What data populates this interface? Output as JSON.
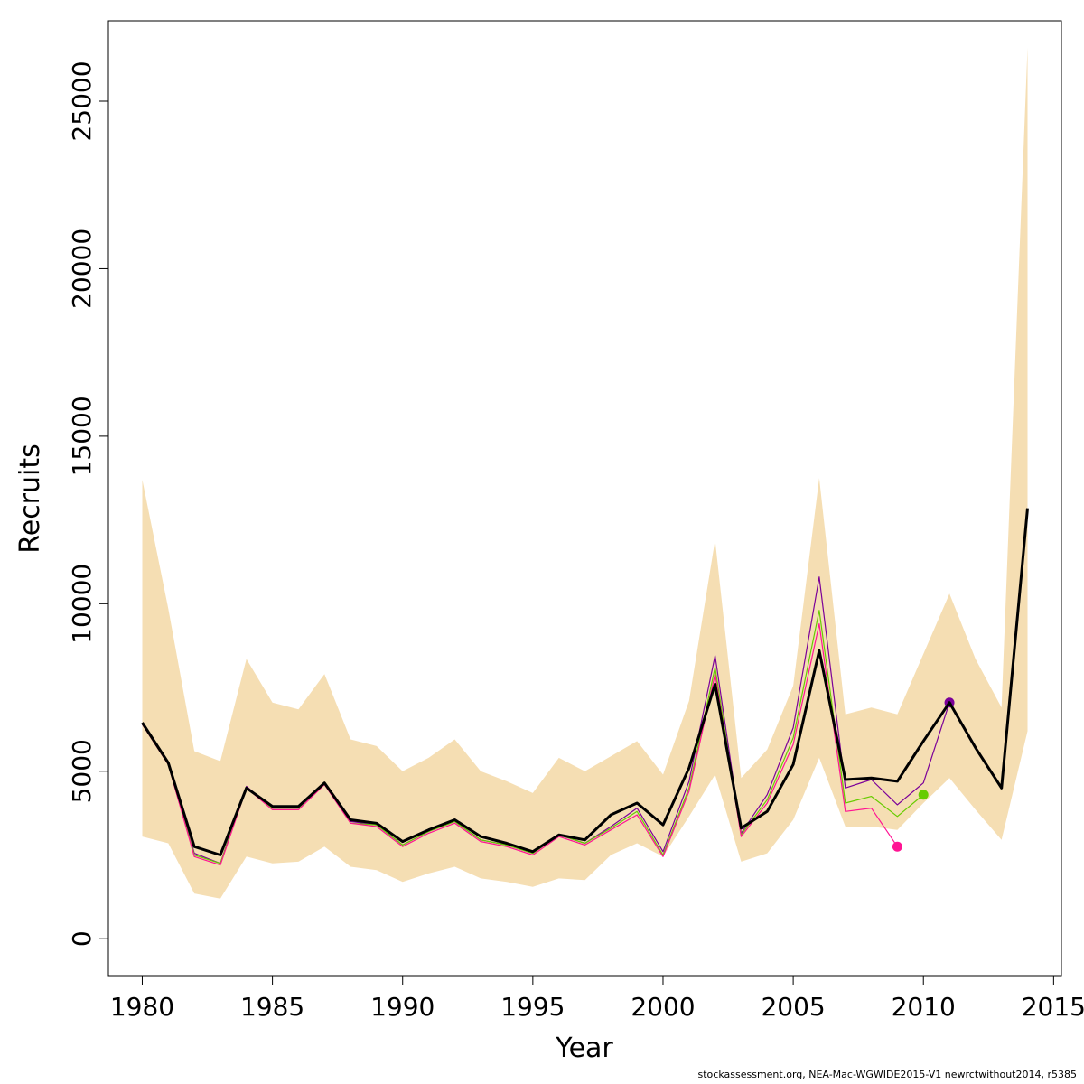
{
  "chart_data": {
    "type": "line",
    "xlabel": "Year",
    "ylabel": "Recruits",
    "xlim": [
      1978.7,
      2015.3
    ],
    "ylim": [
      -1100,
      27400
    ],
    "x_ticks": [
      1980,
      1985,
      1990,
      1995,
      2000,
      2005,
      2010,
      2015
    ],
    "y_ticks": [
      0,
      5000,
      10000,
      15000,
      20000,
      25000
    ],
    "grid": false,
    "band_color": "#F5DEB3",
    "confidence_band": {
      "x": [
        1980,
        1981,
        1982,
        1983,
        1984,
        1985,
        1986,
        1987,
        1988,
        1989,
        1990,
        1991,
        1992,
        1993,
        1994,
        1995,
        1996,
        1997,
        1998,
        1999,
        2000,
        2001,
        2002,
        2003,
        2004,
        2005,
        2006,
        2007,
        2008,
        2009,
        2010,
        2011,
        2012,
        2013,
        2014
      ],
      "lower": [
        3050,
        2850,
        1350,
        1200,
        2450,
        2250,
        2300,
        2750,
        2150,
        2050,
        1700,
        1950,
        2150,
        1800,
        1700,
        1550,
        1800,
        1750,
        2500,
        2850,
        2450,
        3650,
        4900,
        2300,
        2550,
        3550,
        5400,
        3350,
        3350,
        3250,
        4050,
        4800,
        3850,
        2950,
        6200
      ],
      "upper": [
        13700,
        9850,
        5600,
        5300,
        8350,
        7050,
        6850,
        7900,
        5950,
        5750,
        5000,
        5400,
        5950,
        5000,
        4700,
        4350,
        5400,
        5000,
        5450,
        5900,
        4900,
        7100,
        11900,
        4800,
        5650,
        7550,
        13750,
        6700,
        6900,
        6700,
        8500,
        10300,
        8350,
        6900,
        26600
      ]
    },
    "series": [
      {
        "color": "#000000",
        "x": [
          1980,
          1981,
          1982,
          1983,
          1984,
          1985,
          1986,
          1987,
          1988,
          1989,
          1990,
          1991,
          1992,
          1993,
          1994,
          1995,
          1996,
          1997,
          1998,
          1999,
          2000,
          2001,
          2002,
          2003,
          2004,
          2005,
          2006,
          2007,
          2008,
          2009,
          2010,
          2011,
          2012,
          2013,
          2014
        ],
        "values": [
          6450,
          5250,
          2750,
          2500,
          4500,
          3950,
          3950,
          4650,
          3550,
          3450,
          2900,
          3250,
          3550,
          3050,
          2850,
          2600,
          3100,
          2950,
          3700,
          4050,
          3400,
          5100,
          7600,
          3300,
          3800,
          5200,
          8600,
          4750,
          4800,
          4700,
          5900,
          7050,
          5700,
          4500,
          12850
        ]
      },
      {
        "color": "#7B0099",
        "x": [
          1980,
          1981,
          1982,
          1983,
          1984,
          1985,
          1986,
          1987,
          1988,
          1989,
          1990,
          1991,
          1992,
          1993,
          1994,
          1995,
          1996,
          1997,
          1998,
          1999,
          2000,
          2001,
          2002,
          2003,
          2004,
          2005,
          2006,
          2007,
          2008,
          2009,
          2010,
          2011
        ],
        "values": [
          6400,
          5200,
          2550,
          2250,
          4550,
          3900,
          3900,
          4650,
          3500,
          3400,
          2800,
          3200,
          3500,
          2950,
          2800,
          2550,
          3100,
          2850,
          3350,
          3900,
          2600,
          4700,
          8450,
          3150,
          4300,
          6300,
          10800,
          4500,
          4750,
          4000,
          4650,
          7050
        ],
        "endpoint": {
          "x": 2011,
          "value": 7050
        }
      },
      {
        "color": "#66CC00",
        "x": [
          1980,
          1981,
          1982,
          1983,
          1984,
          1985,
          1986,
          1987,
          1988,
          1989,
          1990,
          1991,
          1992,
          1993,
          1994,
          1995,
          1996,
          1997,
          1998,
          1999,
          2000,
          2001,
          2002,
          2003,
          2004,
          2005,
          2006,
          2007,
          2008,
          2009,
          2010
        ],
        "values": [
          6400,
          5200,
          2500,
          2250,
          4500,
          3900,
          3900,
          4650,
          3450,
          3400,
          2800,
          3200,
          3500,
          2950,
          2800,
          2550,
          3100,
          2850,
          3300,
          3800,
          2500,
          4500,
          8100,
          3100,
          4150,
          6000,
          9800,
          4050,
          4250,
          3650,
          4300
        ],
        "endpoint": {
          "x": 2010,
          "value": 4300
        }
      },
      {
        "color": "#FF1493",
        "x": [
          1980,
          1981,
          1982,
          1983,
          1984,
          1985,
          1986,
          1987,
          1988,
          1989,
          1990,
          1991,
          1992,
          1993,
          1994,
          1995,
          1996,
          1997,
          1998,
          1999,
          2000,
          2001,
          2002,
          2003,
          2004,
          2005,
          2006,
          2007,
          2008,
          2009
        ],
        "values": [
          6400,
          5200,
          2450,
          2200,
          4500,
          3850,
          3850,
          4600,
          3450,
          3350,
          2750,
          3150,
          3450,
          2900,
          2750,
          2500,
          3050,
          2800,
          3250,
          3700,
          2450,
          4400,
          7900,
          3050,
          4050,
          5800,
          9400,
          3800,
          3900,
          2750
        ],
        "endpoint": {
          "x": 2009,
          "value": 2750
        }
      }
    ]
  },
  "footer": {
    "note": "stockassessment.org, NEA-Mac-WGWIDE2015-V1  newrctwithout2014, r5385"
  }
}
